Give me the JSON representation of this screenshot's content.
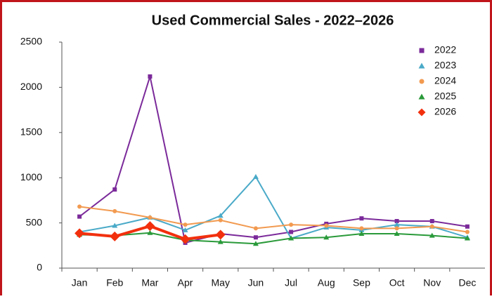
{
  "chart_data": {
    "type": "line",
    "title": "Used Commercial Sales - 2022–2026",
    "categories": [
      "Jan",
      "Feb",
      "Mar",
      "Apr",
      "May",
      "Jun",
      "Jul",
      "Aug",
      "Sep",
      "Oct",
      "Nov",
      "Dec"
    ],
    "series": [
      {
        "name": "2022",
        "color": "#7b2a9a",
        "marker": "square",
        "line_width": 2,
        "values": [
          570,
          870,
          2120,
          280,
          380,
          340,
          400,
          490,
          550,
          520,
          520,
          460
        ]
      },
      {
        "name": "2023",
        "color": "#4aaac8",
        "marker": "triangle",
        "line_width": 2,
        "values": [
          400,
          470,
          560,
          420,
          580,
          1010,
          330,
          450,
          420,
          480,
          460,
          340
        ]
      },
      {
        "name": "2024",
        "color": "#f29a50",
        "marker": "circle",
        "line_width": 2,
        "values": [
          680,
          630,
          560,
          480,
          530,
          440,
          480,
          470,
          440,
          440,
          460,
          400
        ]
      },
      {
        "name": "2025",
        "color": "#2a9a3a",
        "marker": "triangle",
        "line_width": 2,
        "values": [
          370,
          360,
          390,
          310,
          290,
          270,
          330,
          340,
          380,
          380,
          360,
          330
        ]
      },
      {
        "name": "2026",
        "color": "#f2300e",
        "marker": "diamond",
        "line_width": 4,
        "values": [
          385,
          350,
          465,
          320,
          370,
          null,
          null,
          null,
          null,
          null,
          null,
          null
        ]
      }
    ],
    "ylim": [
      0,
      2500
    ],
    "yticks": [
      0,
      500,
      1000,
      1500,
      2000,
      2500
    ],
    "grid": false,
    "legend": "top-right"
  }
}
